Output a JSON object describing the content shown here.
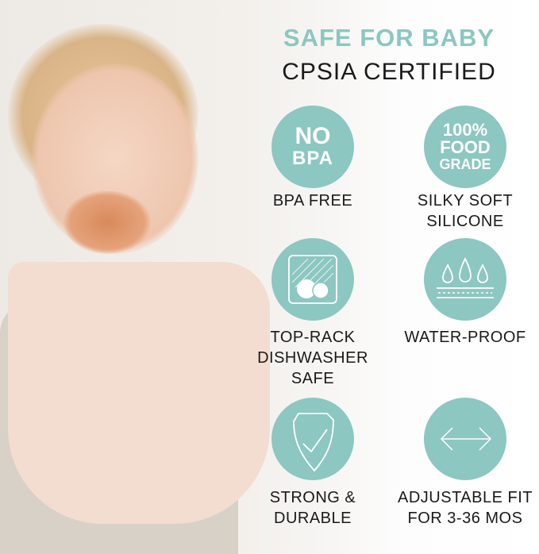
{
  "header": {
    "title": "SAFE FOR BABY",
    "subtitle": "CPSIA CERTIFIED"
  },
  "colors": {
    "accent": "#8cc7c1",
    "text": "#1a1a1a"
  },
  "features": [
    {
      "icon": "no-bpa-badge",
      "badge_lines": [
        "NO",
        "BPA"
      ],
      "label_lines": [
        "BPA FREE"
      ]
    },
    {
      "icon": "food-grade-badge",
      "badge_lines": [
        "100%",
        "FOOD",
        "GRADE"
      ],
      "label_lines": [
        "SILKY SOFT",
        "SILICONE"
      ]
    },
    {
      "icon": "dishwasher-icon",
      "label_lines": [
        "TOP-RACK",
        "DISHWASHER",
        "SAFE"
      ]
    },
    {
      "icon": "water-drops-icon",
      "label_lines": [
        "WATER-PROOF"
      ]
    },
    {
      "icon": "shield-check-icon",
      "label_lines": [
        "STRONG &",
        "DURABLE"
      ]
    },
    {
      "icon": "double-arrow-icon",
      "label_lines": [
        "ADJUSTABLE FIT",
        "FOR 3-36 MOS"
      ]
    }
  ]
}
